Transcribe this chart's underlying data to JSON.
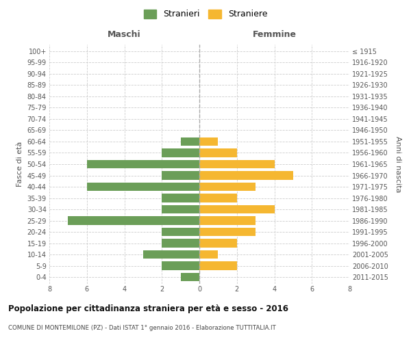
{
  "age_groups": [
    "100+",
    "95-99",
    "90-94",
    "85-89",
    "80-84",
    "75-79",
    "70-74",
    "65-69",
    "60-64",
    "55-59",
    "50-54",
    "45-49",
    "40-44",
    "35-39",
    "30-34",
    "25-29",
    "20-24",
    "15-19",
    "10-14",
    "5-9",
    "0-4"
  ],
  "birth_years": [
    "≤ 1915",
    "1916-1920",
    "1921-1925",
    "1926-1930",
    "1931-1935",
    "1936-1940",
    "1941-1945",
    "1946-1950",
    "1951-1955",
    "1956-1960",
    "1961-1965",
    "1966-1970",
    "1971-1975",
    "1976-1980",
    "1981-1985",
    "1986-1990",
    "1991-1995",
    "1996-2000",
    "2001-2005",
    "2006-2010",
    "2011-2015"
  ],
  "males": [
    0,
    0,
    0,
    0,
    0,
    0,
    0,
    0,
    1,
    2,
    6,
    2,
    6,
    2,
    2,
    7,
    2,
    2,
    3,
    2,
    1
  ],
  "females": [
    0,
    0,
    0,
    0,
    0,
    0,
    0,
    0,
    1,
    2,
    4,
    5,
    3,
    2,
    4,
    3,
    3,
    2,
    1,
    2,
    0
  ],
  "male_color": "#6b9e58",
  "female_color": "#f5b731",
  "male_label": "Stranieri",
  "female_label": "Straniere",
  "title": "Popolazione per cittadinanza straniera per età e sesso - 2016",
  "subtitle": "COMUNE DI MONTEMILONE (PZ) - Dati ISTAT 1° gennaio 2016 - Elaborazione TUTTITALIA.IT",
  "xlabel_left": "Maschi",
  "xlabel_right": "Femmine",
  "ylabel_left": "Fasce di età",
  "ylabel_right": "Anni di nascita",
  "xlim": 8,
  "bg_color": "#ffffff",
  "grid_color": "#cccccc",
  "spine_color": "#cccccc"
}
